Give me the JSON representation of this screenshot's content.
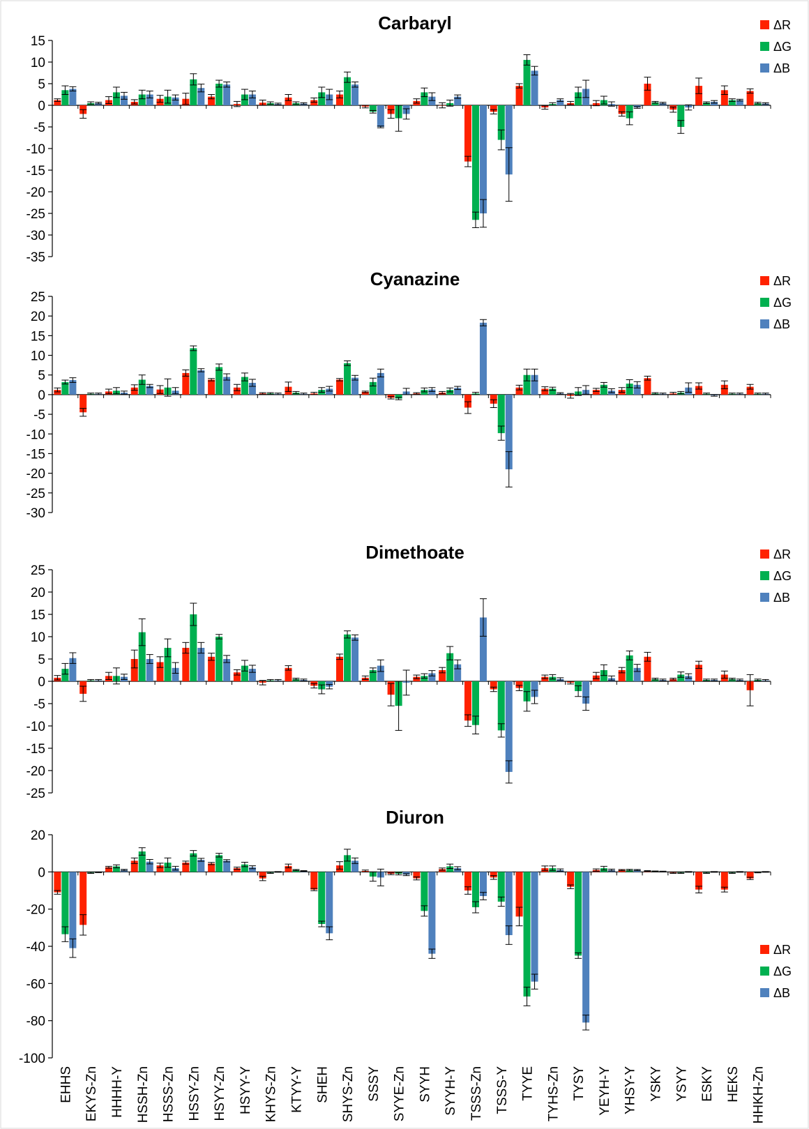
{
  "chart_data": [
    {
      "type": "bar",
      "title": "Carbaryl",
      "ylim": [
        -35,
        15
      ],
      "ytick_step": 5,
      "legend_position": "top-right",
      "grid": false,
      "categories": [
        "EHHS",
        "EKYS-Zn",
        "HHHH-Y",
        "HSSH-Zn",
        "HSSS-Zn",
        "HSSY-Zn",
        "HSYY-Zn",
        "HSYY-Y",
        "KHYS-Zn",
        "KTYY-Y",
        "SHEH",
        "SHYS-Zn",
        "SSSY",
        "SYYE-Zn",
        "SYYH",
        "SYYH-Y",
        "TSSS-Zn",
        "TSSS-Y",
        "TYYE",
        "TYHS-Zn",
        "TYSY",
        "YEYH-Y",
        "YHSY-Y",
        "YSKY",
        "YSYY",
        "ESKY",
        "HEKS",
        "HHKH-Zn"
      ],
      "series": [
        {
          "name": "ΔR",
          "color": "#ff2200",
          "values": [
            1.2,
            -2,
            1.2,
            0.8,
            1.5,
            1.5,
            2,
            0.3,
            0.6,
            1.8,
            1.2,
            2.5,
            -0.3,
            -2,
            1,
            0,
            -13,
            -1.5,
            4.5,
            -0.5,
            0.5,
            0.5,
            -2,
            5,
            -1,
            4.5,
            3.5,
            3.3
          ],
          "errors": [
            0.3,
            1,
            0.8,
            0.5,
            0.8,
            1.3,
            0.5,
            0.6,
            0.6,
            0.7,
            0.5,
            0.8,
            0.3,
            1,
            0.5,
            0.6,
            1.2,
            0.5,
            0.5,
            0.4,
            0.4,
            0.6,
            0.5,
            1.5,
            0.6,
            1.8,
            1,
            0.5
          ]
        },
        {
          "name": "ΔG",
          "color": "#00b050",
          "values": [
            3.5,
            0.5,
            3,
            2.5,
            2,
            6,
            5,
            2.5,
            0.5,
            0.5,
            3,
            6.5,
            -1.5,
            -3,
            3,
            0.5,
            -26.5,
            -8,
            10.5,
            0.3,
            3,
            1.2,
            -3,
            0.7,
            -5,
            0.6,
            1.2,
            0.5
          ],
          "errors": [
            1,
            0.3,
            1.2,
            1,
            1.5,
            1.3,
            0.8,
            1.2,
            0.3,
            0.3,
            1.2,
            1.2,
            0.3,
            3,
            1,
            0.7,
            1.8,
            2.3,
            1.2,
            0.3,
            1.2,
            0.9,
            1.5,
            0.2,
            1.5,
            0.2,
            0.3,
            0.2
          ]
        },
        {
          "name": "ΔB",
          "color": "#4f81bd",
          "values": [
            3.8,
            0.5,
            2.2,
            2.5,
            1.8,
            4,
            4.8,
            2.5,
            0.3,
            0.4,
            2.5,
            4.8,
            -5,
            -2,
            2,
            2,
            -25,
            -16,
            8,
            1.2,
            3.8,
            0.3,
            -0.5,
            0.5,
            -0.5,
            0.8,
            1.2,
            0.4
          ],
          "errors": [
            0.5,
            0.2,
            0.8,
            0.8,
            0.6,
            0.9,
            0.6,
            0.8,
            0.2,
            0.2,
            1.2,
            0.6,
            0.2,
            1.2,
            0.9,
            0.4,
            3.2,
            6.2,
            1,
            0.3,
            2,
            0.5,
            0.2,
            0.2,
            0.6,
            0.3,
            0.2,
            0.2
          ]
        }
      ]
    },
    {
      "type": "bar",
      "title": "Cyanazine",
      "ylim": [
        -30,
        25
      ],
      "ytick_step": 5,
      "legend_position": "top-right",
      "grid": false,
      "categories": [
        "EHHS",
        "EKYS-Zn",
        "HHHH-Y",
        "HSSH-Zn",
        "HSSS-Zn",
        "HSSY-Zn",
        "HSYY-Zn",
        "HSYY-Y",
        "KHYS-Zn",
        "KTYY-Y",
        "SHEH",
        "SHYS-Zn",
        "SSSY",
        "SYYE-Zn",
        "SYYH",
        "SYYH-Y",
        "TSSS-Zn",
        "TSSS-Y",
        "TYYE",
        "TYHS-Zn",
        "TYSY",
        "YEYH-Y",
        "YHSY-Y",
        "YSKY",
        "YSYY",
        "ESKY",
        "HEKS",
        "HHKH-Zn"
      ],
      "series": [
        {
          "name": "ΔR",
          "color": "#ff2200",
          "values": [
            1.2,
            -4.5,
            0.8,
            1.8,
            1.3,
            5.5,
            3.8,
            1.8,
            0.3,
            2,
            0.3,
            3.8,
            0.7,
            -0.8,
            0.3,
            0.5,
            -3.3,
            -2.3,
            1.8,
            1.5,
            -0.3,
            1.2,
            1.2,
            4.2,
            0.3,
            2.2,
            2.5,
            2
          ],
          "errors": [
            0.5,
            1,
            0.6,
            0.7,
            1,
            0.8,
            0.3,
            0.8,
            0.2,
            1.2,
            0.3,
            0.3,
            0.2,
            0.3,
            0.2,
            0.3,
            1.5,
            1,
            0.6,
            0.5,
            0.6,
            0.4,
            0.6,
            0.5,
            0.3,
            0.8,
            1,
            0.6
          ]
        },
        {
          "name": "ΔG",
          "color": "#00b050",
          "values": [
            3.2,
            0.2,
            1,
            3.8,
            1.8,
            11.8,
            7,
            4.5,
            0.3,
            0.5,
            1.2,
            8,
            3.2,
            -1,
            1.2,
            1.2,
            0.3,
            -9.8,
            5,
            1.5,
            0.8,
            2.5,
            2.8,
            0.3,
            0.5,
            0.2,
            0.2,
            0.2
          ],
          "errors": [
            0.5,
            0.2,
            0.8,
            1.2,
            2.2,
            0.6,
            0.8,
            1,
            0.2,
            0.3,
            0.6,
            0.6,
            1,
            0.3,
            0.5,
            0.5,
            0.3,
            1.8,
            1.5,
            0.4,
            1,
            0.6,
            1,
            0.2,
            0.3,
            0.2,
            0.2,
            0.2
          ]
        },
        {
          "name": "ΔB",
          "color": "#4f81bd",
          "values": [
            3.7,
            0.2,
            0.5,
            2.2,
            1,
            6.2,
            4.5,
            3,
            0.2,
            0.2,
            1.5,
            4.3,
            5.5,
            0.8,
            1.3,
            1.7,
            18.3,
            -19,
            5,
            0.3,
            1.2,
            1,
            2.5,
            0.2,
            1.8,
            -0.2,
            0.2,
            0.2
          ],
          "errors": [
            0.6,
            0.2,
            0.4,
            0.4,
            0.8,
            0.4,
            0.8,
            0.9,
            0.2,
            0.2,
            0.6,
            0.6,
            1,
            0.8,
            0.5,
            0.4,
            0.8,
            4.5,
            1.5,
            0.2,
            1.1,
            0.5,
            0.8,
            0.2,
            1.2,
            0.2,
            0.2,
            0.2
          ]
        }
      ]
    },
    {
      "type": "bar",
      "title": "Dimethoate",
      "ylim": [
        -25,
        25
      ],
      "ytick_step": 5,
      "legend_position": "top-right",
      "grid": false,
      "categories": [
        "EHHS",
        "EKYS-Zn",
        "HHHH-Y",
        "HSSH-Zn",
        "HSSS-Zn",
        "HSSY-Zn",
        "HSYY-Zn",
        "HSYY-Y",
        "KHYS-Zn",
        "KTYY-Y",
        "SHEH",
        "SHYS-Zn",
        "SSSY",
        "SYYE-Zn",
        "SYYH",
        "SYYH-Y",
        "TSSS-Zn",
        "TSSS-Y",
        "TYYE",
        "TYHS-Zn",
        "TYSY",
        "YEYH-Y",
        "YHSY-Y",
        "YSKY",
        "YSYY",
        "ESKY",
        "HEKS",
        "HHKH-Zn"
      ],
      "series": [
        {
          "name": "ΔR",
          "color": "#ff2200",
          "values": [
            0.8,
            -2.8,
            1.2,
            5,
            4.3,
            7.5,
            5.5,
            2,
            -0.3,
            3,
            -1,
            5.5,
            0.8,
            -3,
            1,
            2.5,
            -8.8,
            -1.8,
            -1.5,
            1,
            -0.3,
            1.3,
            2.5,
            5.5,
            0.5,
            3.7,
            1.5,
            -2
          ],
          "errors": [
            0.5,
            1.7,
            0.8,
            2,
            1.2,
            1.2,
            0.8,
            0.6,
            0.5,
            0.5,
            0.5,
            0.6,
            0.4,
            2.5,
            0.4,
            0.6,
            1.3,
            0.5,
            0.6,
            0.4,
            0.3,
            0.7,
            0.6,
            1,
            0.2,
            0.8,
            0.8,
            3.5
          ]
        },
        {
          "name": "ΔG",
          "color": "#00b050",
          "values": [
            2.8,
            0.2,
            1.2,
            11,
            7.5,
            15,
            10,
            3.5,
            0.2,
            0.5,
            -1.8,
            10.5,
            2.5,
            -5.5,
            1.2,
            6.3,
            -9.8,
            -11,
            -4.5,
            1,
            -2.2,
            2.5,
            5.8,
            0.5,
            1.5,
            0.3,
            0.5,
            0.3
          ],
          "errors": [
            1.2,
            0.2,
            1.8,
            3,
            2,
            2.5,
            0.5,
            1.2,
            0.2,
            0.2,
            1,
            0.8,
            0.5,
            5.5,
            0.5,
            1.5,
            2,
            1.5,
            2.2,
            0.5,
            1.2,
            1.2,
            1,
            0.2,
            0.6,
            0.2,
            0.2,
            0.2
          ]
        },
        {
          "name": "ΔB",
          "color": "#4f81bd",
          "values": [
            5.2,
            0.2,
            1,
            5,
            3,
            7.5,
            5,
            2.8,
            0.2,
            0.3,
            -1.2,
            9.8,
            3.5,
            -0.3,
            1.8,
            3.8,
            14.3,
            -20.3,
            -3.5,
            0.5,
            -5,
            0.7,
            3,
            0.3,
            1.2,
            0.3,
            0.3,
            0.2
          ],
          "errors": [
            1.2,
            0.2,
            0.6,
            1,
            1.2,
            1.2,
            0.8,
            0.8,
            0.2,
            0.2,
            0.5,
            0.6,
            1.3,
            2.8,
            0.6,
            1,
            4.2,
            2.5,
            1.5,
            0.3,
            1.5,
            0.5,
            0.8,
            0.2,
            0.5,
            0.2,
            0.2,
            0.2
          ]
        }
      ]
    },
    {
      "type": "bar",
      "title": "Diuron",
      "ylim": [
        -100,
        20
      ],
      "ytick_step": 20,
      "legend_position": "bottom-right",
      "grid": false,
      "categories": [
        "EHHS",
        "EKYS-Zn",
        "HHHH-Y",
        "HSSH-Zn",
        "HSSS-Zn",
        "HSSY-Zn",
        "HSYY-Zn",
        "HSYY-Y",
        "KHYS-Zn",
        "KTYY-Y",
        "SHEH",
        "SHYS-Zn",
        "SSSY",
        "SYYE-Zn",
        "SYYH",
        "SYYH-Y",
        "TSSS-Zn",
        "TSSS-Y",
        "TYYE",
        "TYHS-Zn",
        "TYSY",
        "YEYH-Y",
        "YHSY-Y",
        "YSKY",
        "YSYY",
        "ESKY",
        "HEKS",
        "HHKH-Zn"
      ],
      "series": [
        {
          "name": "ΔR",
          "color": "#ff2200",
          "values": [
            -11,
            -28.5,
            2.5,
            6,
            3.5,
            5,
            4.5,
            2,
            -3.5,
            3.2,
            -9.5,
            3.5,
            0.5,
            -1,
            -3.5,
            1.5,
            -10,
            -3,
            -24,
            2,
            -8,
            1,
            1,
            0.5,
            -0.5,
            -9.5,
            -9.5,
            -3.5
          ],
          "errors": [
            1,
            5.5,
            0.5,
            1.5,
            1.2,
            0.8,
            0.6,
            0.6,
            1.2,
            1,
            0.6,
            2,
            0.5,
            0.5,
            0.8,
            0.6,
            2,
            1,
            5,
            1.2,
            1,
            0.6,
            0.3,
            0.2,
            0.3,
            1.8,
            1.3,
            0.6
          ]
        },
        {
          "name": "ΔG",
          "color": "#00b050",
          "values": [
            -33.5,
            -0.5,
            3,
            11,
            5,
            10,
            9,
            4,
            -0.5,
            1,
            -28,
            9,
            -2.5,
            -1,
            -21,
            3,
            -19,
            -16,
            -67,
            2,
            -45,
            2,
            1,
            0.3,
            -0.5,
            -0.5,
            -0.5,
            -0.3
          ],
          "errors": [
            4,
            0.3,
            0.8,
            2,
            2.5,
            1.5,
            1,
            1.2,
            0.3,
            0.3,
            1.5,
            3.2,
            2.5,
            0.6,
            2.8,
            1.2,
            3,
            2.5,
            5,
            1.2,
            1.5,
            1,
            0.4,
            0.2,
            0.3,
            0.3,
            0.3,
            0.2
          ]
        },
        {
          "name": "ΔB",
          "color": "#4f81bd",
          "values": [
            -41,
            -0.2,
            1,
            5.5,
            2,
            6.5,
            6,
            2.5,
            0,
            0.5,
            -33,
            6,
            -3,
            -1.5,
            -44,
            2,
            -13,
            -34,
            -59,
            1,
            -81,
            1,
            1,
            0.2,
            0,
            0,
            0,
            0
          ],
          "errors": [
            5,
            0.2,
            0.4,
            1.2,
            1,
            0.8,
            0.6,
            0.8,
            0.2,
            0.2,
            3.5,
            1.5,
            4.5,
            0.5,
            2.5,
            0.8,
            2,
            5,
            4,
            0.6,
            4,
            0.5,
            0.3,
            0.2,
            0.2,
            0.2,
            0.2,
            0.2
          ]
        }
      ]
    }
  ]
}
